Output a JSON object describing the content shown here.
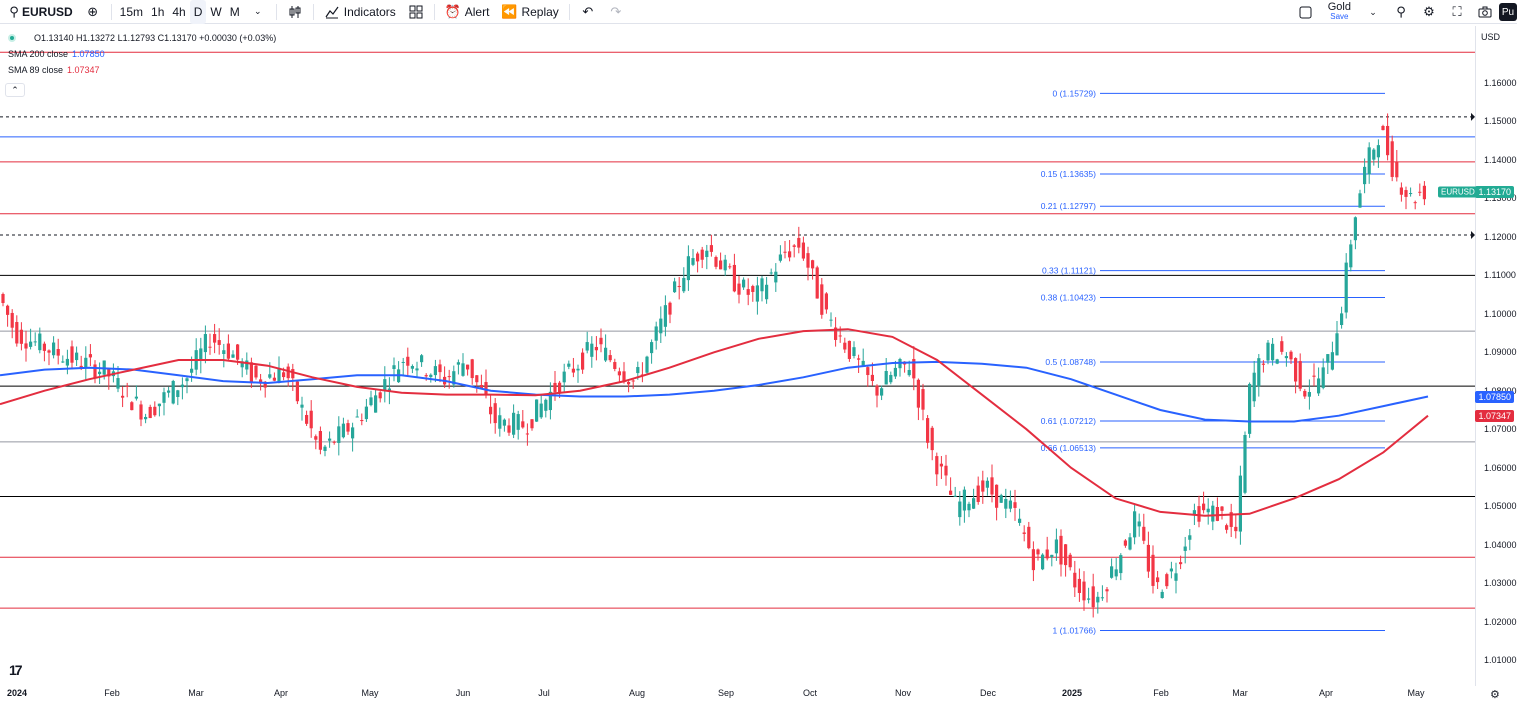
{
  "toolbar": {
    "symbol": "EURUSD",
    "timeframes": [
      "15m",
      "1h",
      "4h",
      "D",
      "W",
      "M"
    ],
    "active_timeframe": "D",
    "indicators_label": "Indicators",
    "alert_label": "Alert",
    "replay_label": "Replay",
    "layout_name": "Gold",
    "layout_save": "Save",
    "publish_initial": "Pu"
  },
  "legend": {
    "ohlc": "O1.13140 H1.13272 L1.12793 C1.13170 +0.00030 (+0.03%)",
    "sma200_label": "SMA 200 close",
    "sma200_value": "1.07850",
    "sma89_label": "SMA 89 close",
    "sma89_value": "1.07347"
  },
  "price_axis": {
    "currency": "USD",
    "ticks": [
      "1.16000",
      "1.15000",
      "1.14000",
      "1.13000",
      "1.12000",
      "1.11000",
      "1.10000",
      "1.09000",
      "1.08000",
      "1.07000",
      "1.06000",
      "1.05000",
      "1.04000",
      "1.03000",
      "1.02000",
      "1.01000"
    ],
    "current_symbol_label": "EURUSD",
    "current_price": "1.13170",
    "sma200_tag": "1.07850",
    "sma89_tag": "1.07347"
  },
  "time_axis": {
    "labels": [
      "2024",
      "Feb",
      "Mar",
      "Apr",
      "May",
      "Jun",
      "Jul",
      "Aug",
      "Sep",
      "Oct",
      "Nov",
      "Dec",
      "2025",
      "Feb",
      "Mar",
      "Apr",
      "May"
    ]
  },
  "colors": {
    "up": "#22ab94",
    "down": "#f23645",
    "candle_up_body": "#26a69a",
    "sma200": "#2962ff",
    "sma89": "#e32d3f",
    "fib": "#2962ff",
    "red_level": "#e32d3f",
    "black_level": "#000000"
  },
  "fib_levels": [
    {
      "label": "0 (1.15729)",
      "value": 1.15729
    },
    {
      "label": "0.15 (1.13635)",
      "value": 1.13635
    },
    {
      "label": "0.21 (1.12797)",
      "value": 1.12797
    },
    {
      "label": "0.33 (1.11121)",
      "value": 1.11121
    },
    {
      "label": "0.38 (1.10423)",
      "value": 1.10423
    },
    {
      "label": "0.5 (1.08748)",
      "value": 1.08748
    },
    {
      "label": "0.61 (1.07212)",
      "value": 1.07212
    },
    {
      "label": "0.66 (1.06513)",
      "value": 1.06513
    },
    {
      "label": "1 (1.01766)",
      "value": 1.01766
    }
  ],
  "chart_data": {
    "type": "candlestick",
    "symbol": "EURUSD",
    "ylim": [
      1.0,
      1.17
    ],
    "horizontal_levels": {
      "red": [
        1.168,
        1.1395,
        1.126,
        1.0367,
        1.0235
      ],
      "blue": [
        1.146
      ],
      "black": [
        1.11,
        1.0812,
        1.0525
      ],
      "gray": [
        1.0955,
        1.0667
      ],
      "dashed": [
        1.1512,
        1.1205
      ]
    },
    "sma200": [
      1.084,
      1.0855,
      1.086,
      1.0855,
      1.084,
      1.0825,
      1.082,
      1.083,
      1.084,
      1.084,
      1.0825,
      1.08,
      1.079,
      1.0785,
      1.0785,
      1.079,
      1.08,
      1.0815,
      1.0835,
      1.086,
      1.0872,
      1.0875,
      1.087,
      1.086,
      1.083,
      1.079,
      1.075,
      1.0725,
      1.072,
      1.072,
      1.0735,
      1.076,
      1.0785
    ],
    "sma89": [
      1.0765,
      1.08,
      1.083,
      1.0855,
      1.088,
      1.088,
      1.0865,
      1.0835,
      1.081,
      1.0795,
      1.079,
      1.079,
      1.0788,
      1.08,
      1.0825,
      1.086,
      1.09,
      1.0935,
      1.0955,
      1.096,
      1.094,
      1.088,
      1.079,
      1.07,
      1.06,
      1.052,
      1.0485,
      1.0475,
      1.048,
      1.052,
      1.057,
      1.064,
      1.0735
    ]
  }
}
